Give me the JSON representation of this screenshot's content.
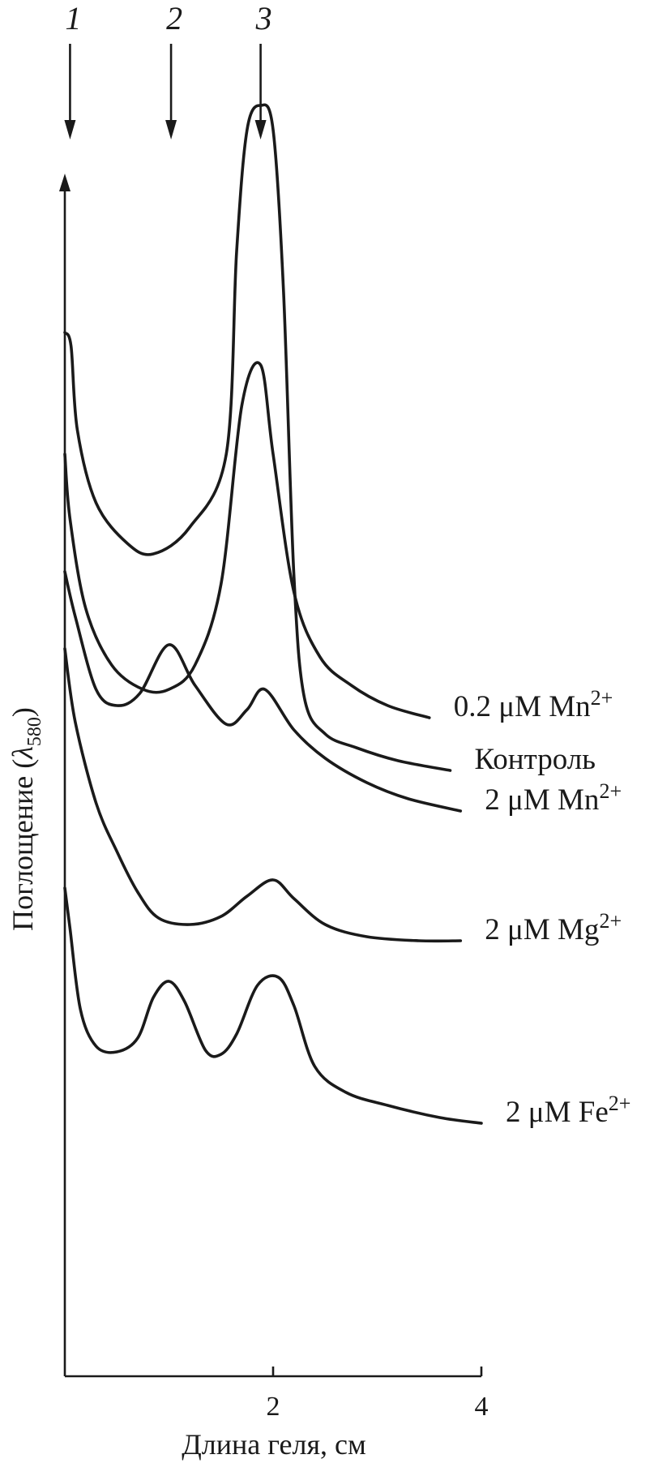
{
  "chart_data": {
    "type": "line",
    "xlabel": "Длина геля, см",
    "ylabel_main": "Поглощение (",
    "ylabel_symbol": "λ",
    "ylabel_sub": "580",
    "ylabel_close": ")",
    "xlim": [
      0,
      4
    ],
    "x_ticks": [
      {
        "value": 2,
        "label": "2"
      },
      {
        "value": 4,
        "label": "4"
      }
    ],
    "markers": [
      {
        "label": "1",
        "x": 0.05
      },
      {
        "label": "2",
        "x": 1.02
      },
      {
        "label": "3",
        "x": 1.88
      }
    ],
    "series": [
      {
        "name": "Контроль",
        "name_sup": "",
        "offset": 1010,
        "points": [
          [
            0.0,
            600
          ],
          [
            0.06,
            583
          ],
          [
            0.12,
            480
          ],
          [
            0.3,
            390
          ],
          [
            0.6,
            340
          ],
          [
            0.85,
            327
          ],
          [
            1.2,
            360
          ],
          [
            1.55,
            450
          ],
          [
            1.65,
            700
          ],
          [
            1.75,
            850
          ],
          [
            1.88,
            880
          ],
          [
            2.0,
            850
          ],
          [
            2.1,
            650
          ],
          [
            2.2,
            300
          ],
          [
            2.3,
            150
          ],
          [
            2.5,
            105
          ],
          [
            2.8,
            88
          ],
          [
            3.2,
            72
          ],
          [
            3.7,
            60
          ]
        ]
      },
      {
        "name": "0.2 μM Mn",
        "name_sup": "2+",
        "offset": 960,
        "points": [
          [
            0.0,
            400
          ],
          [
            0.05,
            320
          ],
          [
            0.2,
            210
          ],
          [
            0.45,
            140
          ],
          [
            0.75,
            110
          ],
          [
            1.0,
            110
          ],
          [
            1.25,
            140
          ],
          [
            1.5,
            240
          ],
          [
            1.7,
            460
          ],
          [
            1.88,
            510
          ],
          [
            2.0,
            400
          ],
          [
            2.2,
            230
          ],
          [
            2.45,
            150
          ],
          [
            2.75,
            115
          ],
          [
            3.1,
            90
          ],
          [
            3.5,
            75
          ]
        ]
      },
      {
        "name": "2 μM Mn",
        "name_sup": "2+",
        "offset": 1005,
        "points": [
          [
            0.0,
            300
          ],
          [
            0.1,
            245
          ],
          [
            0.3,
            155
          ],
          [
            0.5,
            135
          ],
          [
            0.72,
            150
          ],
          [
            1.0,
            210
          ],
          [
            1.25,
            160
          ],
          [
            1.55,
            112
          ],
          [
            1.75,
            130
          ],
          [
            1.92,
            155
          ],
          [
            2.2,
            105
          ],
          [
            2.5,
            70
          ],
          [
            2.9,
            40
          ],
          [
            3.3,
            20
          ],
          [
            3.8,
            5
          ]
        ]
      },
      {
        "name": "2 μM Mg",
        "name_sup": "2+",
        "offset": 1180,
        "points": [
          [
            0.0,
            380
          ],
          [
            0.1,
            290
          ],
          [
            0.3,
            190
          ],
          [
            0.5,
            130
          ],
          [
            0.7,
            80
          ],
          [
            0.9,
            48
          ],
          [
            1.2,
            40
          ],
          [
            1.5,
            50
          ],
          [
            1.75,
            75
          ],
          [
            2.0,
            95
          ],
          [
            2.2,
            72
          ],
          [
            2.5,
            40
          ],
          [
            2.9,
            25
          ],
          [
            3.4,
            20
          ],
          [
            3.8,
            20
          ]
        ]
      },
      {
        "name": "2 μM Fe",
        "name_sup": "2+",
        "offset": 1385,
        "points": [
          [
            0.0,
            290
          ],
          [
            0.05,
            240
          ],
          [
            0.15,
            140
          ],
          [
            0.3,
            95
          ],
          [
            0.5,
            88
          ],
          [
            0.7,
            105
          ],
          [
            0.85,
            155
          ],
          [
            1.0,
            175
          ],
          [
            1.15,
            150
          ],
          [
            1.35,
            90
          ],
          [
            1.5,
            85
          ],
          [
            1.65,
            110
          ],
          [
            1.85,
            170
          ],
          [
            2.05,
            180
          ],
          [
            2.2,
            145
          ],
          [
            2.4,
            70
          ],
          [
            2.7,
            38
          ],
          [
            3.1,
            22
          ],
          [
            3.6,
            7
          ],
          [
            4.0,
            0
          ]
        ]
      }
    ]
  }
}
